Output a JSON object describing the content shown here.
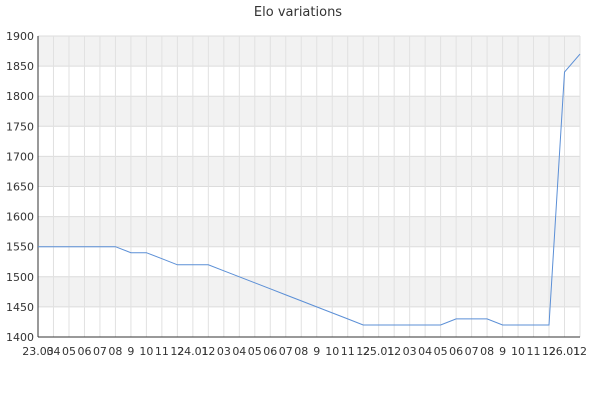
{
  "chart_data": {
    "type": "line",
    "title": "Elo variations",
    "xlabel": "",
    "ylabel": "",
    "ylim": [
      1400,
      1900
    ],
    "yticks": [
      1400,
      1450,
      1500,
      1550,
      1600,
      1650,
      1700,
      1750,
      1800,
      1850,
      1900
    ],
    "x_tick_labels": [
      "23.03",
      "04",
      "05",
      "06",
      "07",
      "08",
      "9",
      "10",
      "11",
      "12",
      "24.01",
      "12",
      "03",
      "04",
      "05",
      "06",
      "07",
      "08",
      "9",
      "10",
      "11",
      "12",
      "25.01",
      "12",
      "03",
      "04",
      "05",
      "06",
      "07",
      "08",
      "9",
      "10",
      "11",
      "12",
      "26.01",
      "12"
    ],
    "grid": true,
    "line_color": "#5b8fd6",
    "series": [
      {
        "name": "",
        "values": [
          1550,
          1550,
          1550,
          1550,
          1550,
          1550,
          1540,
          1540,
          1530,
          1520,
          1520,
          1520,
          1510,
          1500,
          1490,
          1480,
          1470,
          1460,
          1450,
          1440,
          1430,
          1420,
          1420,
          1420,
          1420,
          1420,
          1420,
          1430,
          1430,
          1430,
          1420,
          1420,
          1420,
          1420,
          1840,
          1870
        ]
      }
    ]
  }
}
